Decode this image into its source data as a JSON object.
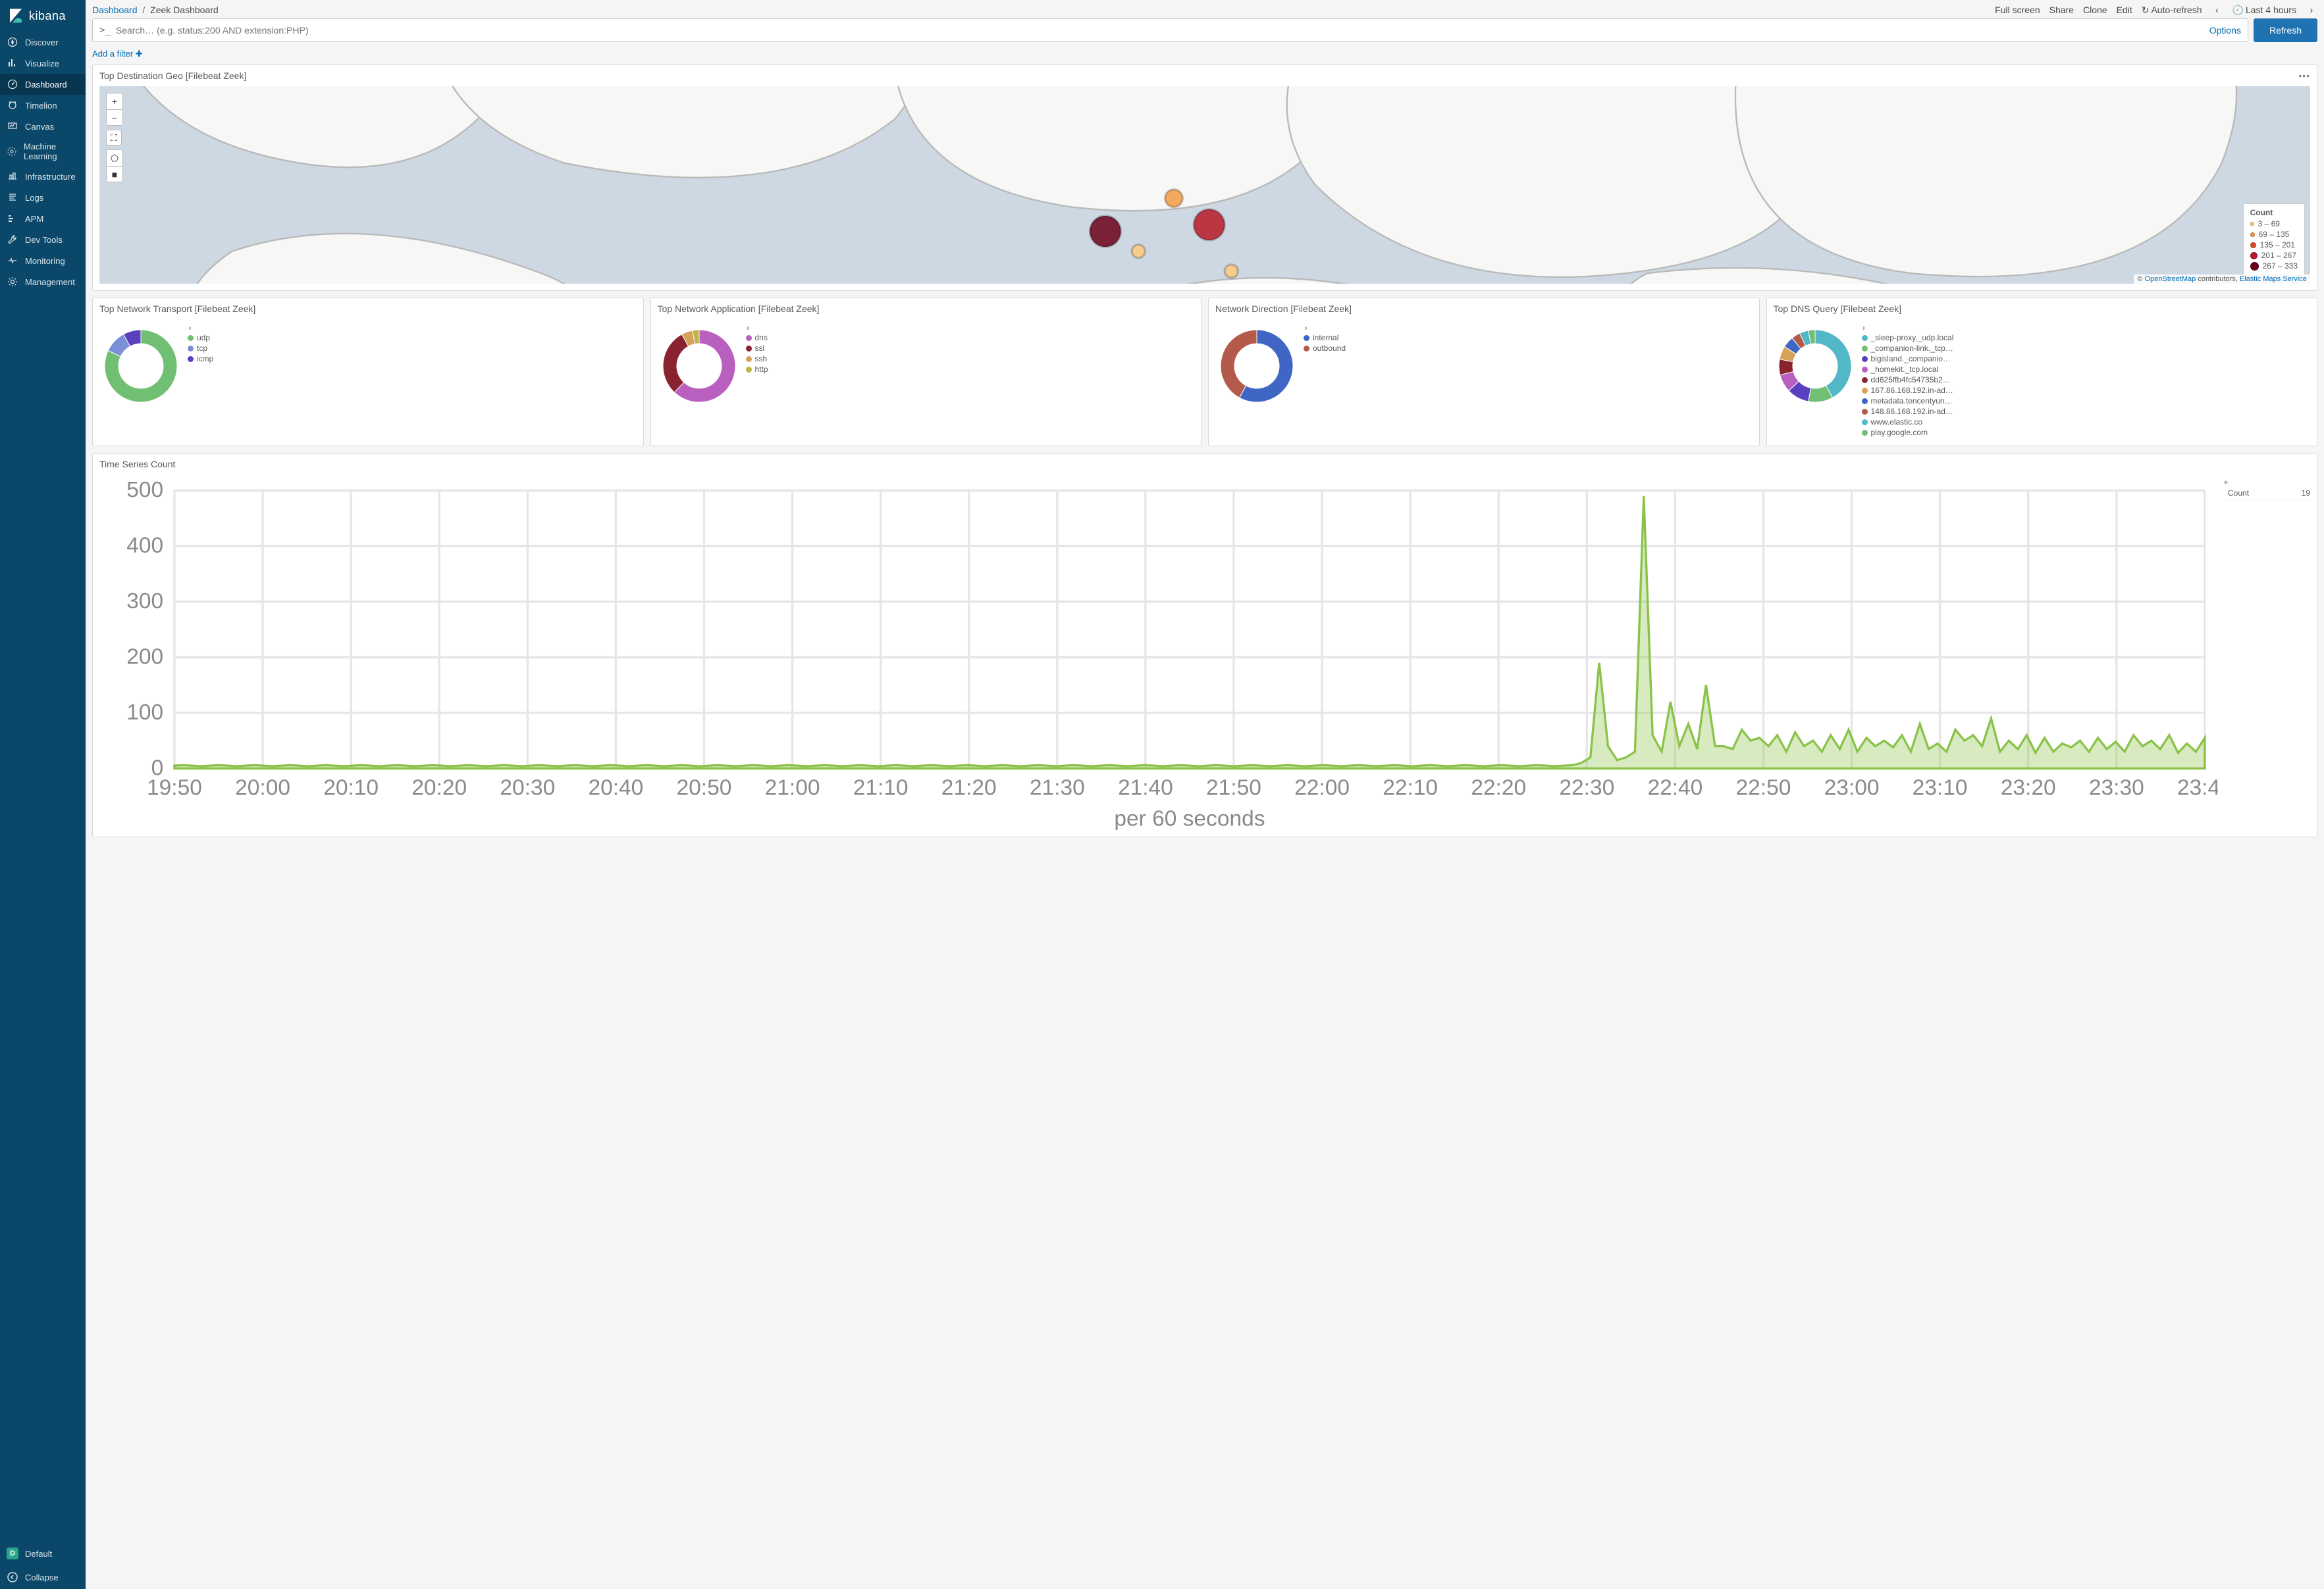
{
  "app_name": "kibana",
  "sidebar": {
    "items": [
      {
        "icon": "compass",
        "label": "Discover"
      },
      {
        "icon": "bar-chart",
        "label": "Visualize"
      },
      {
        "icon": "gauge",
        "label": "Dashboard",
        "active": true
      },
      {
        "icon": "timelion",
        "label": "Timelion"
      },
      {
        "icon": "canvas",
        "label": "Canvas"
      },
      {
        "icon": "ml",
        "label": "Machine Learning"
      },
      {
        "icon": "infra",
        "label": "Infrastructure"
      },
      {
        "icon": "logs",
        "label": "Logs"
      },
      {
        "icon": "apm",
        "label": "APM"
      },
      {
        "icon": "wrench",
        "label": "Dev Tools"
      },
      {
        "icon": "heartbeat",
        "label": "Monitoring"
      },
      {
        "icon": "gear",
        "label": "Management"
      }
    ],
    "space": {
      "badge": "D",
      "label": "Default"
    },
    "collapse_label": "Collapse"
  },
  "breadcrumb": {
    "root": "Dashboard",
    "current": "Zeek Dashboard"
  },
  "topbar": {
    "links": [
      "Full screen",
      "Share",
      "Clone",
      "Edit"
    ],
    "autorefresh": "Auto-refresh",
    "range": "Last 4 hours"
  },
  "search": {
    "placeholder": "Search… (e.g. status:200 AND extension:PHP)",
    "options": "Options",
    "refresh": "Refresh"
  },
  "filter": {
    "add": "Add a filter"
  },
  "map": {
    "title": "Top Destination Geo [Filebeat Zeek]",
    "bg": "#cdd8e3",
    "land": "#f7f7f5",
    "border": "#b9b9b9",
    "attr_osm": "OpenStreetMap",
    "attr_mid": " contributors, ",
    "attr_ems": "Elastic Maps Service",
    "legend_title": "Count",
    "legend": [
      {
        "color": "#fecb7e",
        "size": 6,
        "label": "3 – 69"
      },
      {
        "color": "#f29b43",
        "size": 7,
        "label": "69 – 135"
      },
      {
        "color": "#e3482c",
        "size": 9,
        "label": "135 – 201"
      },
      {
        "color": "#b71a27",
        "size": 11,
        "label": "201 – 267"
      },
      {
        "color": "#6b0019",
        "size": 13,
        "label": "267 – 333"
      }
    ],
    "points": [
      {
        "x": 0.455,
        "y": 0.57,
        "r": 7,
        "color": "#6b0019"
      },
      {
        "x": 0.502,
        "y": 0.56,
        "r": 7,
        "color": "#b71a27"
      },
      {
        "x": 0.486,
        "y": 0.52,
        "r": 4,
        "color": "#f29b43"
      },
      {
        "x": 0.47,
        "y": 0.6,
        "r": 3,
        "color": "#fecb7e"
      },
      {
        "x": 0.512,
        "y": 0.63,
        "r": 3,
        "color": "#fecb7e"
      }
    ]
  },
  "donuts": [
    {
      "title": "Top Network Transport [Filebeat Zeek]",
      "series": [
        {
          "label": "udp",
          "value": 82,
          "color": "#70bf73"
        },
        {
          "label": "tcp",
          "value": 10,
          "color": "#7a8fd6"
        },
        {
          "label": "icmp",
          "value": 8,
          "color": "#5a3fbf"
        }
      ]
    },
    {
      "title": "Top Network Application [Filebeat Zeek]",
      "series": [
        {
          "label": "dns",
          "value": 62,
          "color": "#b85fc0"
        },
        {
          "label": "ssl",
          "value": 30,
          "color": "#8a2330"
        },
        {
          "label": "ssh",
          "value": 5,
          "color": "#d7a35a"
        },
        {
          "label": "http",
          "value": 3,
          "color": "#c0b34a"
        }
      ]
    },
    {
      "title": "Network Direction [Filebeat Zeek]",
      "series": [
        {
          "label": "internal",
          "value": 58,
          "color": "#3f66c4"
        },
        {
          "label": "outbound",
          "value": 42,
          "color": "#b35a4a"
        }
      ]
    },
    {
      "title": "Top DNS Query [Filebeat Zeek]",
      "series": [
        {
          "label": "_sleep-proxy._udp.local",
          "value": 42,
          "color": "#52b7c6"
        },
        {
          "label": "_companion-link._tcp…",
          "value": 11,
          "color": "#70bf73"
        },
        {
          "label": "bigisland._companio…",
          "value": 10,
          "color": "#5a3fbf"
        },
        {
          "label": "_homekit._tcp.local",
          "value": 8,
          "color": "#b85fc0"
        },
        {
          "label": "dd625ffb4fc54735b2…",
          "value": 7,
          "color": "#8a2330"
        },
        {
          "label": "167.86.168.192.in-ad…",
          "value": 6,
          "color": "#d7a35a"
        },
        {
          "label": "metadata.tencentyun…",
          "value": 5,
          "color": "#3f66c4"
        },
        {
          "label": "148.86.168.192.in-ad…",
          "value": 4,
          "color": "#b35a4a"
        },
        {
          "label": "www.elastic.co",
          "value": 4,
          "color": "#52b7c6"
        },
        {
          "label": "play.google.com",
          "value": 3,
          "color": "#70bf73"
        }
      ]
    }
  ],
  "timeseries": {
    "title": "Time Series Count",
    "ylabel_ticks": [
      0,
      100,
      200,
      300,
      400,
      500
    ],
    "ymax": 500,
    "x_labels": [
      "19:50",
      "20:00",
      "20:10",
      "20:20",
      "20:30",
      "20:40",
      "20:50",
      "21:00",
      "21:10",
      "21:20",
      "21:30",
      "21:40",
      "21:50",
      "22:00",
      "22:10",
      "22:20",
      "22:30",
      "22:40",
      "22:50",
      "23:00",
      "23:10",
      "23:20",
      "23:30",
      "23:40"
    ],
    "x_caption": "per 60 seconds",
    "series_color": "#8bc34a",
    "fill_opacity": 0.35,
    "grid_color": "#e6e6e6",
    "legend": {
      "label": "Count",
      "value": "19",
      "color": "#8bc34a"
    },
    "values": [
      5,
      6,
      5,
      4,
      5,
      6,
      5,
      4,
      5,
      6,
      5,
      4,
      5,
      6,
      5,
      4,
      5,
      6,
      5,
      4,
      5,
      6,
      5,
      4,
      5,
      6,
      5,
      4,
      5,
      6,
      5,
      4,
      5,
      6,
      5,
      4,
      5,
      6,
      5,
      4,
      5,
      6,
      5,
      4,
      5,
      6,
      5,
      4,
      5,
      6,
      5,
      4,
      5,
      6,
      5,
      4,
      5,
      6,
      5,
      4,
      5,
      6,
      5,
      4,
      5,
      6,
      5,
      4,
      5,
      6,
      5,
      4,
      5,
      6,
      5,
      4,
      5,
      6,
      5,
      4,
      5,
      6,
      5,
      4,
      5,
      6,
      5,
      4,
      5,
      6,
      5,
      4,
      5,
      6,
      5,
      4,
      5,
      6,
      5,
      4,
      5,
      6,
      5,
      4,
      5,
      6,
      5,
      4,
      5,
      6,
      5,
      4,
      5,
      6,
      5,
      4,
      5,
      6,
      5,
      4,
      5,
      6,
      5,
      4,
      5,
      6,
      5,
      4,
      5,
      6,
      5,
      4,
      5,
      6,
      5,
      4,
      5,
      6,
      5,
      4,
      5,
      6,
      5,
      4,
      5,
      6,
      5,
      4,
      5,
      6,
      5,
      4,
      5,
      6,
      5,
      4,
      5,
      6,
      10,
      20,
      190,
      40,
      15,
      20,
      30,
      490,
      60,
      30,
      120,
      40,
      80,
      35,
      150,
      40,
      40,
      35,
      70,
      50,
      55,
      40,
      60,
      30,
      65,
      40,
      50,
      30,
      60,
      35,
      70,
      30,
      55,
      40,
      50,
      38,
      60,
      30,
      80,
      35,
      45,
      30,
      70,
      50,
      60,
      40,
      90,
      30,
      50,
      35,
      60,
      28,
      55,
      30,
      45,
      38,
      50,
      30,
      55,
      35,
      48,
      30,
      60,
      40,
      50,
      35,
      60,
      28,
      45,
      30,
      55
    ]
  }
}
